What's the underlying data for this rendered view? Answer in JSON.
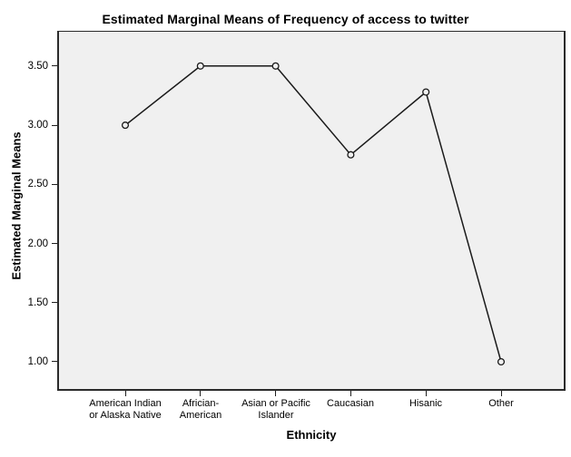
{
  "chart_data": {
    "type": "line",
    "title": "Estimated Marginal Means of Frequency of access to twitter",
    "xlabel": "Ethnicity",
    "ylabel": "Estimated Marginal Means",
    "categories": [
      "American Indian\nor Alaska Native",
      "Africian-\nAmerican",
      "Asian or Pacific\nIslander",
      "Caucasian",
      "Hisanic",
      "Other"
    ],
    "values": [
      3.0,
      3.5,
      3.5,
      2.75,
      3.28,
      1.0
    ],
    "yticks": [
      {
        "value": 3.5,
        "label": "3.50"
      },
      {
        "value": 3.0,
        "label": "3.00"
      },
      {
        "value": 2.5,
        "label": "2.50"
      },
      {
        "value": 2.0,
        "label": "2.00"
      },
      {
        "value": 1.5,
        "label": "1.50"
      },
      {
        "value": 1.0,
        "label": "1.00"
      }
    ],
    "ylim": [
      0.77,
      3.79
    ],
    "grid": false,
    "legend": "none",
    "marker": "open-circle",
    "colors": {
      "page_background": "#ffffff",
      "plot_background": "#f0f0f0",
      "line": "#1a1a1a",
      "marker_edge": "#1a1a1a",
      "frame": "#2b2b2b",
      "text": "#000000"
    }
  }
}
